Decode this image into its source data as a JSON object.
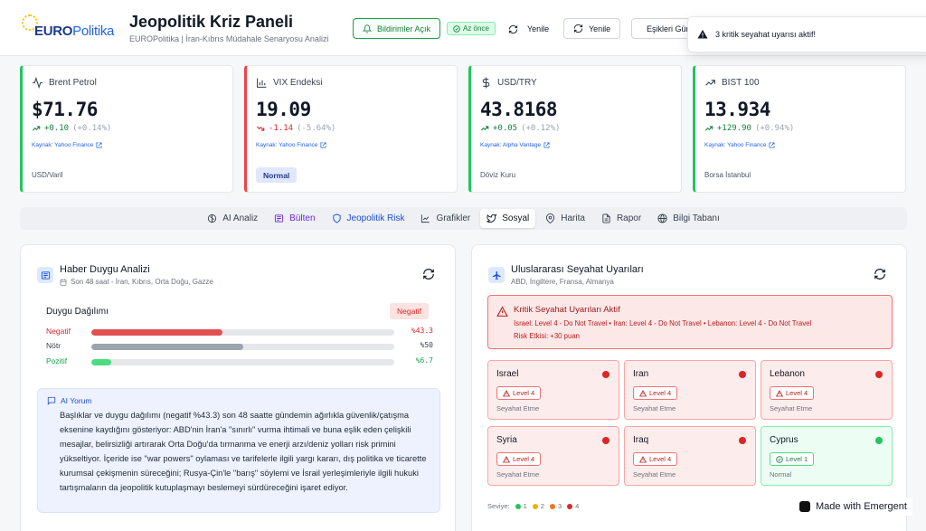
{
  "header": {
    "logo": {
      "euro": "EURO",
      "politika": "Politika"
    },
    "title": "Jeopolitik Kriz Paneli",
    "subtitle": "EUROPolitika | İran-Kıbrıs Müdahale Senaryosu Analizi",
    "notifications_label": "Bildirimler Açık",
    "updated_badge": "Az önce",
    "refresh_plain": "Yenile",
    "refresh_button": "Yenile",
    "thresholds_label": "Eşikleri Güncelle"
  },
  "toast": {
    "message": "3 kritik seyahat uyarısı aktif!"
  },
  "metrics": [
    {
      "label": "Brent Petrol",
      "icon": "activity-icon",
      "value": "$71.76",
      "change": "+0.10",
      "pct": "(+0.14%)",
      "direction": "up",
      "source": "Kaynak: Yahoo Finance",
      "unit": "USD/Varil",
      "color": "#22c55e"
    },
    {
      "label": "VIX Endeksi",
      "icon": "bar-chart-icon",
      "value": "19.09",
      "change": "-1.14",
      "pct": "(-5.64%)",
      "direction": "down",
      "source": "Kaynak: Yahoo Finance",
      "badge": "Normal",
      "color": "#ef4444"
    },
    {
      "label": "USD/TRY",
      "icon": "dollar-icon",
      "value": "43.8168",
      "change": "+0.05",
      "pct": "(+0.12%)",
      "direction": "up",
      "source": "Kaynak: Alpha Vantage",
      "unit": "Döviz Kuru",
      "color": "#22c55e"
    },
    {
      "label": "BIST 100",
      "icon": "trending-up-icon",
      "value": "13.934",
      "change": "+129.90",
      "pct": "(+0.94%)",
      "direction": "up",
      "source": "Kaynak: Yahoo Finance",
      "unit": "Borsa İstanbul",
      "color": "#22c55e"
    }
  ],
  "tabs": [
    {
      "label": "AI Analiz",
      "icon": "brain-icon",
      "style": "normal"
    },
    {
      "label": "Bülten",
      "icon": "newspaper-icon",
      "style": "purple"
    },
    {
      "label": "Jeopolitik Risk",
      "icon": "shield-icon",
      "style": "blue"
    },
    {
      "label": "Grafikler",
      "icon": "chart-icon",
      "style": "normal"
    },
    {
      "label": "Sosyal",
      "icon": "twitter-icon",
      "style": "active"
    },
    {
      "label": "Harita",
      "icon": "map-pin-icon",
      "style": "normal"
    },
    {
      "label": "Rapor",
      "icon": "file-icon",
      "style": "normal"
    },
    {
      "label": "Bilgi Tabanı",
      "icon": "globe-icon",
      "style": "normal"
    }
  ],
  "sentiment": {
    "title": "Haber Duygu Analizi",
    "subtitle": "Son 48 saat - İran, Kıbrıs, Orta Doğu, Gazze",
    "distribution_label": "Duygu Dağılımı",
    "overall_badge": "Negatif",
    "rows": [
      {
        "label": "Negatif",
        "value": 43.3,
        "display": "%43.3",
        "color": "#e05252",
        "label_color": "#dc2626"
      },
      {
        "label": "Nötr",
        "value": 50,
        "display": "%50",
        "color": "#9ca3af",
        "label_color": "#374151"
      },
      {
        "label": "Pozitif",
        "value": 6.7,
        "display": "%6.7",
        "color": "#4ade80",
        "label_color": "#16a34a"
      }
    ],
    "ai": {
      "title": "AI Yorum",
      "text": "Başlıklar ve duygu dağılımı (negatif %43.3) son 48 saatte gündemin ağırlıkla güvenlik/çatışma eksenine kaydığını gösteriyor: ABD'nin İran'a \"sınırlı\" vurma ihtimali ve buna eşlik eden çelişkili mesajlar, belirsizliği artırarak Orta Doğu'da tırmanma ve enerji arzı/deniz yolları risk primini yükseltiyor. İçeride ise \"war powers\" oylaması ve tarifelerle ilgili yargı kararı, dış politika ve ticarette kurumsal çekişmenin süreceğini; Rusya-Çin'le \"barış\" söylemi ve İsrail yerleşimleriyle ilgili hukuki tartışmaların da jeopolitik kutuplaşmayı beslemeyi sürdüreceğini işaret ediyor."
    }
  },
  "travel": {
    "title": "Uluslararası Seyahat Uyarıları",
    "subtitle": "ABD, İngiltere, Fransa, Almanya",
    "alert": {
      "title": "Kritik Seyahat Uyarıları Aktif",
      "list": "Israel: Level 4 - Do Not Travel • Iran: Level 4 - Do Not Travel • Lebanon: Level 4 - Do Not Travel",
      "risk": "Risk Etkisi: +30 puan"
    },
    "countries": [
      {
        "name": "Israel",
        "level": "Level 4",
        "status": "Seyahat Etme",
        "tone": "red"
      },
      {
        "name": "Iran",
        "level": "Level 4",
        "status": "Seyahat Etme",
        "tone": "red"
      },
      {
        "name": "Lebanon",
        "level": "Level 4",
        "status": "Seyahat Etme",
        "tone": "red"
      },
      {
        "name": "Syria",
        "level": "Level 4",
        "status": "Seyahat Etme",
        "tone": "red"
      },
      {
        "name": "Iraq",
        "level": "Level 4",
        "status": "Seyahat Etme",
        "tone": "red"
      },
      {
        "name": "Cyprus",
        "level": "Level 1",
        "status": "Normal",
        "tone": "green"
      }
    ],
    "legend": {
      "label": "Seviye:",
      "items": [
        {
          "label": "1",
          "color": "#22c55e"
        },
        {
          "label": "2",
          "color": "#eab308"
        },
        {
          "label": "3",
          "color": "#f97316"
        },
        {
          "label": "4",
          "color": "#dc2626"
        }
      ]
    }
  },
  "made_with": "Made with Emergent"
}
